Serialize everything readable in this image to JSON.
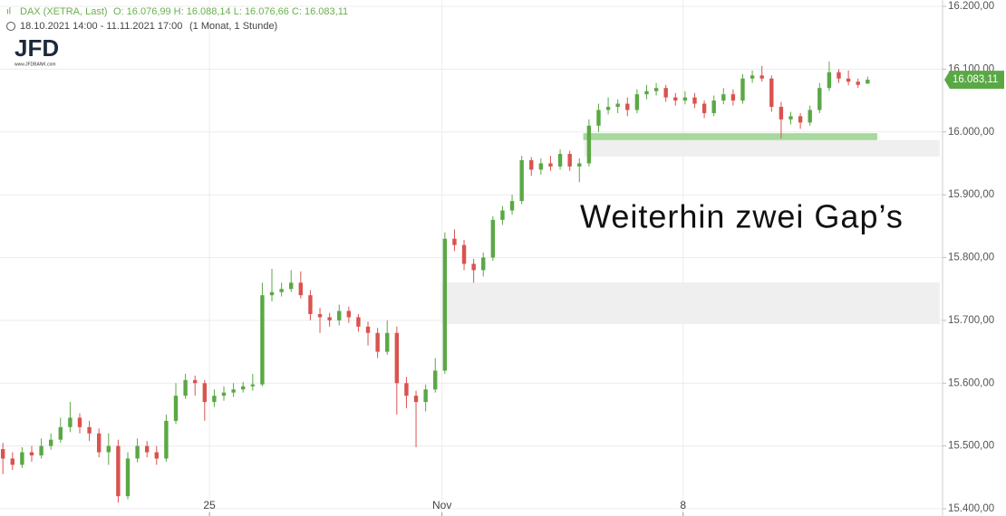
{
  "header": {
    "instrument": "DAX (XETRA, Last)",
    "ohlc": "O: 16.076,99  H: 16.088,14  L: 16.076,66  C: 16.083,11",
    "range": "18.10.2021 14:00 - 11.11.2021 17:00",
    "period": "(1 Monat, 1 Stunde)",
    "logo": "JFD",
    "logo_url": "www.JFDBANK.com"
  },
  "chart_data": {
    "type": "candlestick",
    "annotation": "Weiterhin zwei Gap’s",
    "up_color": "#5aa845",
    "down_color": "#d9534f",
    "xlim": [
      -0.3,
      97.8
    ],
    "xticks": [
      {
        "value": 21.5,
        "label": "25"
      },
      {
        "value": 45.7,
        "label": "Nov"
      },
      {
        "value": 70.8,
        "label": "8"
      }
    ],
    "ylim": [
      15388.5,
      16210.1
    ],
    "yticks": [
      {
        "value": 15400,
        "label": "15.400,00"
      },
      {
        "value": 15500,
        "label": "15.500,00"
      },
      {
        "value": 15600,
        "label": "15.600,00"
      },
      {
        "value": 15700,
        "label": "15.700,00"
      },
      {
        "value": 15800,
        "label": "15.800,00"
      },
      {
        "value": 15900,
        "label": "15.900,00"
      },
      {
        "value": 16000,
        "label": "16.000,00"
      },
      {
        "value": 16100,
        "label": "16.100,00"
      },
      {
        "value": 16200,
        "label": "16.200,00"
      }
    ],
    "grid": true,
    "last_price": {
      "value": 16083.11,
      "label": "16.083,11"
    },
    "zones": [
      {
        "from": 15694,
        "to": 15760.5,
        "start": 45.6,
        "end": 97.5,
        "color": "#efefef"
      },
      {
        "from": 15961,
        "to": 15987,
        "start": 60.5,
        "end": 97.5,
        "color": "#efefef"
      },
      {
        "from": 15987,
        "to": 15998,
        "start": 60.4,
        "end": 91.0,
        "color": "#a6d99c"
      }
    ],
    "open": [
      15495,
      15480,
      15470,
      15490,
      15485,
      15500,
      15510,
      15530,
      15545,
      15530,
      15520,
      15490,
      15500,
      15420,
      15480,
      15500,
      15490,
      15480,
      15540,
      15580,
      15605,
      15600,
      15570,
      15580,
      15585,
      15590,
      15595,
      15598,
      15740,
      15745,
      15750,
      15760,
      15740,
      15710,
      15705,
      15700,
      15715,
      15705,
      15690,
      15680,
      15650,
      15680,
      15600,
      15580,
      15570,
      15590,
      15620,
      15830,
      15820,
      15790,
      15780,
      15800,
      15860,
      15875,
      15890,
      15955,
      15940,
      15950,
      15945,
      15965,
      15945,
      15950,
      16010,
      16035,
      16040,
      16045,
      16035,
      16060,
      16065,
      16070,
      16055,
      16050,
      16055,
      16045,
      16030,
      16050,
      16060,
      16050,
      16085,
      16090,
      16085,
      16040,
      16020,
      16025,
      16015,
      16035,
      16070,
      16095,
      16085,
      16080,
      16076.99
    ],
    "high": [
      15505,
      15490,
      15498,
      15500,
      15512,
      15520,
      15545,
      15570,
      15552,
      15540,
      15528,
      15520,
      15510,
      15490,
      15512,
      15508,
      15500,
      15550,
      15600,
      15615,
      15612,
      15605,
      15590,
      15595,
      15600,
      15602,
      15615,
      15760,
      15782,
      15760,
      15780,
      15778,
      15748,
      15720,
      15712,
      15725,
      15722,
      15710,
      15698,
      15688,
      15700,
      15690,
      15610,
      15588,
      15598,
      15640,
      15840,
      15845,
      15828,
      15798,
      15808,
      15866,
      15882,
      15900,
      15962,
      15960,
      15958,
      15962,
      15972,
      15970,
      15958,
      16020,
      16045,
      16055,
      16052,
      16055,
      16068,
      16075,
      16078,
      16075,
      16062,
      16065,
      16062,
      16050,
      16058,
      16070,
      16068,
      16092,
      16098,
      16105,
      16090,
      16048,
      16032,
      16030,
      16042,
      16078,
      16112,
      16100,
      16098,
      16085,
      16088.14
    ],
    "low": [
      15455,
      15462,
      15465,
      15475,
      15480,
      15494,
      15505,
      15522,
      15520,
      15508,
      15482,
      15470,
      15410,
      15415,
      15474,
      15482,
      15470,
      15475,
      15535,
      15575,
      15580,
      15540,
      15562,
      15572,
      15578,
      15585,
      15588,
      15595,
      15730,
      15738,
      15745,
      15735,
      15700,
      15680,
      15690,
      15692,
      15696,
      15682,
      15660,
      15640,
      15645,
      15550,
      15560,
      15498,
      15555,
      15585,
      15615,
      15810,
      15780,
      15760,
      15770,
      15795,
      15852,
      15868,
      15885,
      15930,
      15932,
      15938,
      15940,
      15938,
      15920,
      15945,
      16000,
      16028,
      16030,
      16025,
      16030,
      16052,
      16058,
      16048,
      16042,
      16044,
      16038,
      16022,
      16025,
      16044,
      16042,
      16045,
      16078,
      16080,
      16032,
      15990,
      16012,
      16005,
      16010,
      16030,
      16065,
      16078,
      16074,
      16070,
      16076.66
    ],
    "close": [
      15480,
      15470,
      15490,
      15485,
      15500,
      15510,
      15530,
      15545,
      15530,
      15520,
      15490,
      15500,
      15420,
      15480,
      15500,
      15490,
      15480,
      15540,
      15580,
      15605,
      15600,
      15570,
      15580,
      15585,
      15590,
      15595,
      15598,
      15740,
      15745,
      15750,
      15760,
      15740,
      15710,
      15705,
      15700,
      15715,
      15705,
      15690,
      15680,
      15650,
      15680,
      15600,
      15580,
      15570,
      15590,
      15620,
      15830,
      15820,
      15790,
      15780,
      15800,
      15860,
      15875,
      15890,
      15955,
      15940,
      15950,
      15945,
      15965,
      15945,
      15950,
      16010,
      16035,
      16040,
      16045,
      16035,
      16060,
      16065,
      16070,
      16055,
      16050,
      16055,
      16045,
      16030,
      16050,
      16060,
      16050,
      16085,
      16090,
      16085,
      16040,
      16020,
      16025,
      16015,
      16035,
      16070,
      16095,
      16085,
      16080,
      16075,
      16083.11
    ]
  }
}
